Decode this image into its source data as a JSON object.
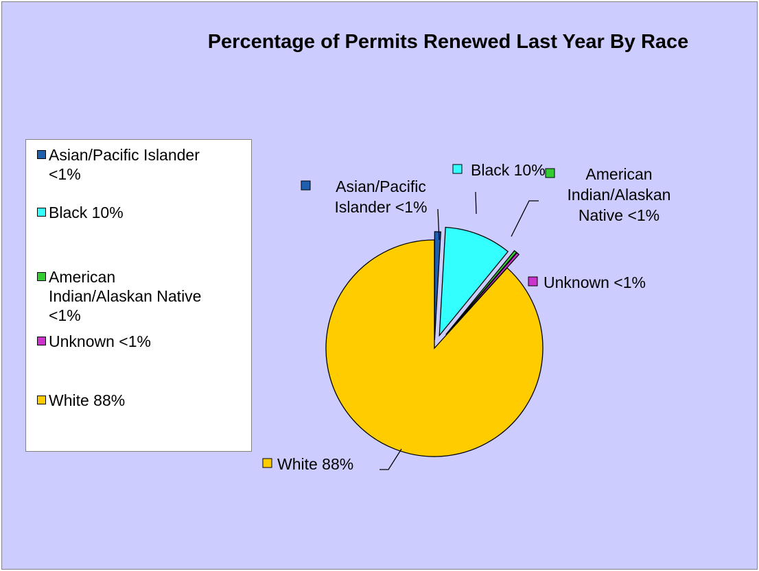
{
  "chart_data": {
    "type": "pie",
    "title": "Percentage of Permits Renewed Last Year By Race",
    "slices": [
      {
        "name": "Asian/Pacific Islander",
        "label": "Asian/Pacific Islander <1%",
        "value": 0.9,
        "color": "#1f5fad"
      },
      {
        "name": "Black",
        "label": "Black 10%",
        "value": 10,
        "color": "#33ffff"
      },
      {
        "name": "American Indian/Alaskan Native",
        "label": "American Indian/Alaskan Native <1%",
        "value": 0.4,
        "color": "#33cc33"
      },
      {
        "name": "Unknown",
        "label": "Unknown <1%",
        "value": 0.4,
        "color": "#cc33cc"
      },
      {
        "name": "White",
        "label": "White 88%",
        "value": 88.3,
        "color": "#ffcc00"
      }
    ],
    "legend": {
      "position": "left",
      "items": [
        "Asian/Pacific Islander <1%",
        "Black 10%",
        "American Indian/Alaskan Native <1%",
        "Unknown <1%",
        "White 88%"
      ]
    },
    "data_labels": {
      "asian": [
        "Asian/Pacific",
        "Islander <1%"
      ],
      "black": [
        "Black 10%"
      ],
      "american_indian": [
        "American",
        "Indian/Alaskan",
        "Native <1%"
      ],
      "unknown": [
        "Unknown <1%"
      ],
      "white": [
        "White 88%"
      ]
    },
    "exploded": true
  }
}
